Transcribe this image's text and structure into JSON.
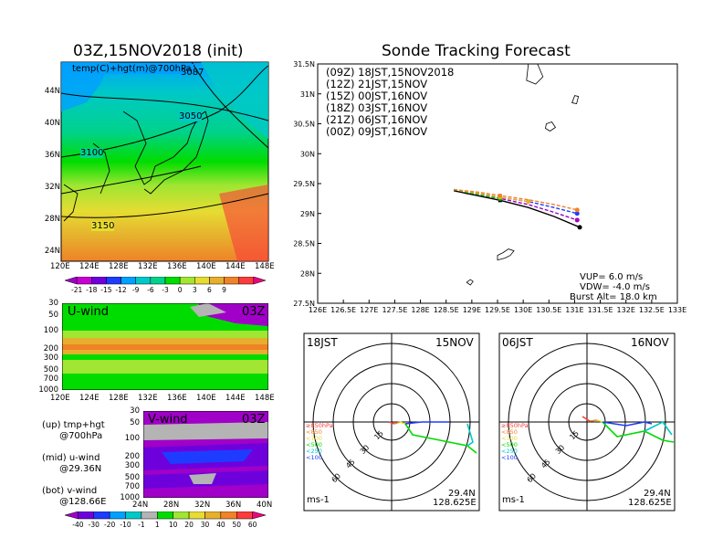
{
  "left_title": "03Z,15NOV2018 (init)",
  "right_title": "Sonde Tracking Forecast",
  "map_panel": {
    "label": "temp(C)+hgt(m)@700hPa",
    "contours": [
      "3050",
      "3100",
      "3150",
      "3087"
    ],
    "lon_ticks": [
      "120E",
      "124E",
      "128E",
      "132E",
      "136E",
      "140E",
      "144E",
      "148E"
    ],
    "lat_ticks": [
      "44N",
      "40N",
      "36N",
      "32N",
      "28N",
      "24N"
    ]
  },
  "temp_colorbar": {
    "ticks": [
      "-21",
      "-18",
      "-15",
      "-12",
      "-9",
      "-6",
      "-3",
      "0",
      "3",
      "6",
      "9"
    ],
    "colors": [
      "#a000c8",
      "#c800d2",
      "#6e00dc",
      "#1e3cff",
      "#00a0ff",
      "#00c8c8",
      "#00d28c",
      "#00dc00",
      "#a0e632",
      "#e6dc32",
      "#e6af2d",
      "#f08228",
      "#fa3c3c",
      "#f00082"
    ]
  },
  "uwind_panel": {
    "label": "U-wind",
    "time": "03Z",
    "p_ticks": [
      "30",
      "50",
      "100",
      "200",
      "300",
      "500",
      "700",
      "1000"
    ],
    "lon_ticks": [
      "120E",
      "124E",
      "128E",
      "132E",
      "136E",
      "140E",
      "144E",
      "148E"
    ]
  },
  "vwind_panel": {
    "label": "V-wind",
    "time": "03Z",
    "p_ticks": [
      "30",
      "50",
      "100",
      "200",
      "300",
      "500",
      "700",
      "1000"
    ],
    "lat_ticks": [
      "24N",
      "28N",
      "32N",
      "36N",
      "40N"
    ]
  },
  "panel_notes": "(up) tmp+hgt\n      @700hPa\n\n(mid) u-wind\n      @29.36N\n\n(bot) v-wind\n      @128.66E",
  "wind_colorbar": {
    "ticks": [
      "-40",
      "-30",
      "-20",
      "-10",
      "-1",
      "1",
      "10",
      "20",
      "30",
      "40",
      "50",
      "60"
    ],
    "colors": [
      "#a000c8",
      "#6e00dc",
      "#1e3cff",
      "#00a0ff",
      "#00c8c8",
      "#b4b4b4",
      "#00dc00",
      "#a0e632",
      "#e6dc32",
      "#e6af2d",
      "#f08228",
      "#fa3c3c",
      "#f00082"
    ]
  },
  "track_legend": [
    {
      "text": "(09Z)  18JST,15NOV2018",
      "color": "#000000"
    },
    {
      "text": "(12Z)  21JST,15NOV",
      "color": "#a000c8"
    },
    {
      "text": "(15Z)  00JST,16NOV",
      "color": "#1e3cff"
    },
    {
      "text": "(18Z)  03JST,16NOV",
      "color": "#00b400"
    },
    {
      "text": "(21Z)  06JST,16NOV",
      "color": "#e6af2d"
    },
    {
      "text": "(00Z)  09JST,16NOV",
      "color": "#f08228"
    }
  ],
  "track_axes": {
    "lat_ticks": [
      "31.5N",
      "31N",
      "30.5N",
      "30N",
      "29.5N",
      "29N",
      "28.5N",
      "28N",
      "27.5N"
    ],
    "lon_ticks": [
      "126E",
      "126.5E",
      "127E",
      "127.5E",
      "128E",
      "128.5E",
      "129E",
      "129.5E",
      "130E",
      "130.5E",
      "131E",
      "131.5E",
      "132E",
      "132.5E",
      "133E"
    ]
  },
  "sonde_params": {
    "vup": "VUP=  6.0  m/s",
    "vdw": "VDW=  -4.0  m/s",
    "burst": "Burst Alt=  18.0  km"
  },
  "hodographs": [
    {
      "time": "18JST",
      "date": "15NOV",
      "lat": "29.4N",
      "lon": "128.625E",
      "unit": "ms-1",
      "rings": [
        "15",
        "30",
        "45",
        "60"
      ],
      "levels": [
        {
          "label": "≥850hPa",
          "color": "#fa3c3c"
        },
        {
          "label": "<850",
          "color": "#f08228"
        },
        {
          "label": "<700",
          "color": "#e6dc32"
        },
        {
          "label": "<500",
          "color": "#00dc00"
        },
        {
          "label": "<250",
          "color": "#00c8c8"
        },
        {
          "label": "<100",
          "color": "#1e3cff"
        }
      ]
    },
    {
      "time": "06JST",
      "date": "16NOV",
      "lat": "29.4N",
      "lon": "128.625E",
      "unit": "ms-1",
      "rings": [
        "15",
        "30",
        "45",
        "60"
      ],
      "levels": [
        {
          "label": "≥850hPa",
          "color": "#fa3c3c"
        },
        {
          "label": "<850",
          "color": "#f08228"
        },
        {
          "label": "<700",
          "color": "#e6dc32"
        },
        {
          "label": "<500",
          "color": "#00dc00"
        },
        {
          "label": "<250",
          "color": "#00c8c8"
        },
        {
          "label": "<100",
          "color": "#1e3cff"
        }
      ]
    }
  ],
  "chart_data": {
    "type": "line",
    "title": "Sonde Tracking Forecast",
    "xlabel": "",
    "ylabel": "",
    "xlim": [
      126,
      133
    ],
    "ylim": [
      27.5,
      31.5
    ],
    "series": [
      {
        "name": "(09Z) 18JST,15NOV2018",
        "color": "#000000",
        "lon": [
          128.65,
          129.1,
          129.55,
          130.1,
          130.6,
          131.1
        ],
        "lat": [
          29.38,
          29.3,
          29.22,
          29.1,
          28.95,
          28.77
        ]
      },
      {
        "name": "(12Z) 21JST,15NOV",
        "color": "#a000c8",
        "lon": [
          128.65,
          129.1,
          129.55,
          130.1,
          130.6,
          131.05
        ],
        "lat": [
          29.4,
          29.32,
          29.25,
          29.15,
          29.02,
          28.89
        ]
      },
      {
        "name": "(15Z) 00JST,16NOV",
        "color": "#1e3cff",
        "lon": [
          128.65,
          129.1,
          129.55,
          130.1,
          130.6,
          131.05
        ],
        "lat": [
          29.4,
          29.34,
          29.27,
          29.2,
          29.1,
          29.0
        ]
      },
      {
        "name": "(18Z) 03JST,16NOV",
        "color": "#00b400",
        "lon": [
          128.65,
          129.1,
          129.55
        ],
        "lat": [
          29.4,
          29.32,
          29.25
        ]
      },
      {
        "name": "(21Z) 06JST,16NOV",
        "color": "#e6af2d",
        "lon": [
          128.65,
          129.1,
          129.55,
          130.1
        ],
        "lat": [
          29.4,
          29.34,
          29.27,
          29.2
        ]
      },
      {
        "name": "(00Z) 09JST,16NOV",
        "color": "#f08228",
        "lon": [
          128.65,
          129.1,
          129.55,
          130.1,
          130.6,
          131.05
        ],
        "lat": [
          29.4,
          29.36,
          29.3,
          29.23,
          29.15,
          29.06
        ]
      }
    ],
    "grid": true
  }
}
